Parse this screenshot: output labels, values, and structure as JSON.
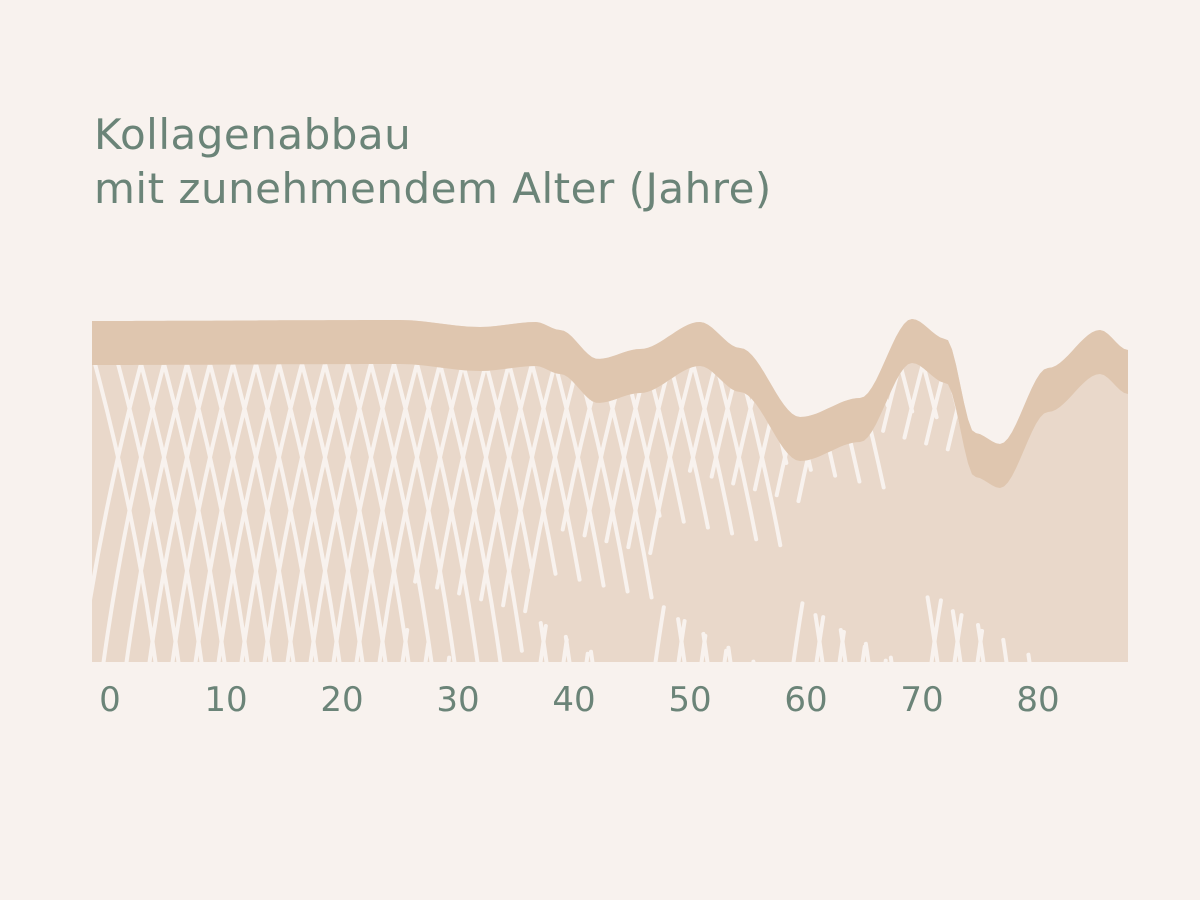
{
  "title": {
    "line1": "Kollagenabbau",
    "line2": "mit zunehmendem Alter (Jahre)"
  },
  "x_axis": {
    "ticks": [
      "0",
      "10",
      "20",
      "30",
      "40",
      "50",
      "60",
      "70",
      "80"
    ]
  },
  "colors": {
    "background": "#f8f2ee",
    "skin_fill": "#e9d8ca",
    "surface_band": "#dfc6af",
    "collagen_fibers": "#f8f2ee",
    "text": "#6b8478"
  }
}
